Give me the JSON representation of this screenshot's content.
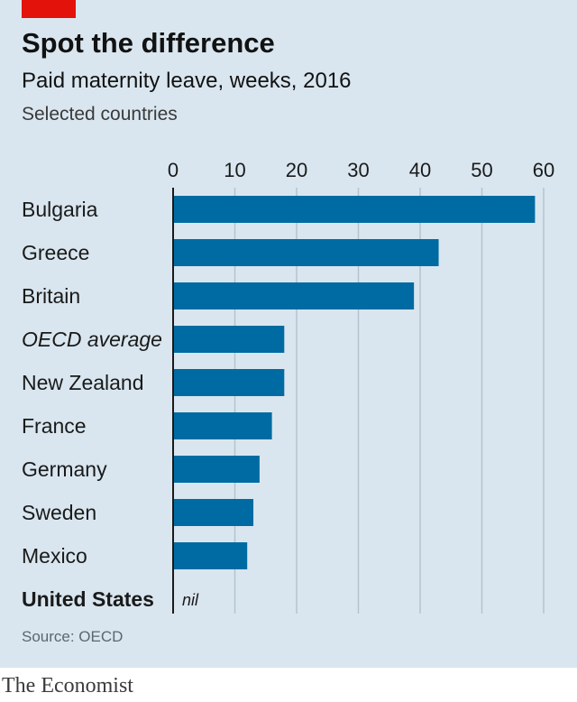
{
  "header": {
    "title": "Spot the difference",
    "subtitle": "Paid maternity leave, weeks, 2016",
    "note": "Selected countries"
  },
  "footer": {
    "source": "Source: OECD",
    "brand": "The Economist"
  },
  "colors": {
    "bar": "#006ba2",
    "background": "#d9e6ef",
    "gridline": "#b4c3cd",
    "accent": "#e3120b"
  },
  "chart_data": {
    "type": "bar",
    "orientation": "horizontal",
    "title": "Spot the difference",
    "subtitle": "Paid maternity leave, weeks, 2016",
    "xlabel": "",
    "ylabel": "",
    "xlim": [
      0,
      60
    ],
    "ticks": [
      0,
      10,
      20,
      30,
      40,
      50,
      60
    ],
    "grid": true,
    "legend": "none",
    "categories": [
      "Bulgaria",
      "Greece",
      "Britain",
      "OECD average",
      "New Zealand",
      "France",
      "Germany",
      "Sweden",
      "Mexico",
      "United States"
    ],
    "values": [
      58.6,
      43,
      39,
      18,
      18,
      16,
      14,
      13,
      12,
      0
    ],
    "italic_categories": [
      "OECD average"
    ],
    "bold_categories": [
      "United States"
    ],
    "value_notes": {
      "United States": "nil"
    }
  }
}
